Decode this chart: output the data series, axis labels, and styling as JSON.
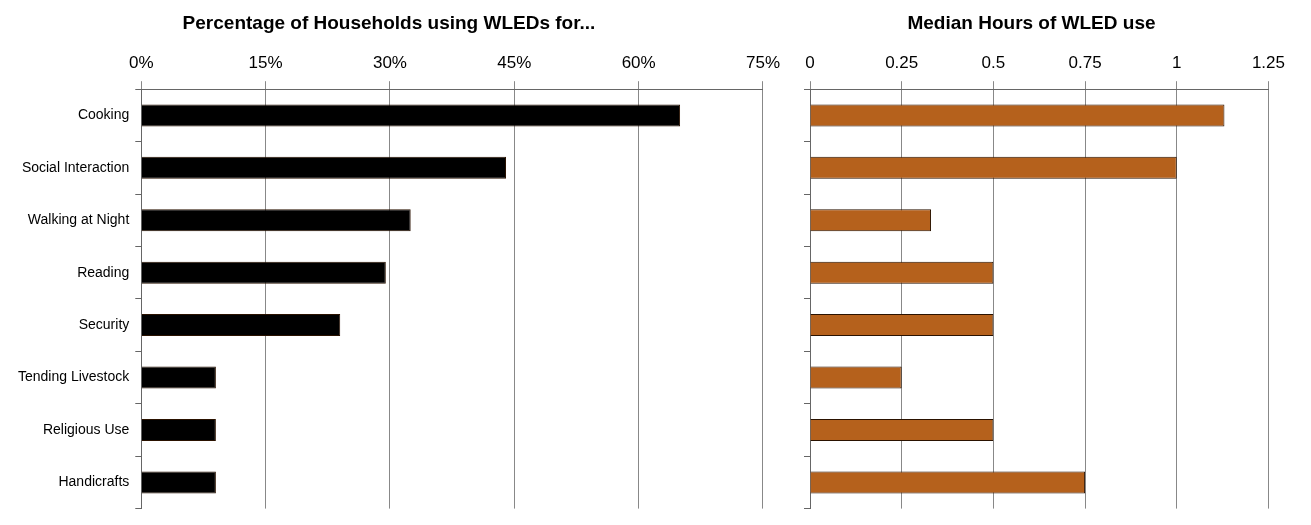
{
  "chart_data": [
    {
      "type": "bar",
      "orientation": "horizontal",
      "title": "Percentage of Households using WLEDs for...",
      "categories": [
        "Cooking",
        "Social Interaction",
        "Walking at Night",
        "Reading",
        "Security",
        "Tending Livestock",
        "Religious Use",
        "Handicrafts"
      ],
      "values": [
        65,
        44,
        32.5,
        29.5,
        24,
        9,
        9,
        9
      ],
      "color": "#000000",
      "xlim": [
        0,
        75
      ],
      "xticks": [
        {
          "value": 0,
          "label": "0%"
        },
        {
          "value": 15,
          "label": "15%"
        },
        {
          "value": 30,
          "label": "30%"
        },
        {
          "value": 45,
          "label": "45%"
        },
        {
          "value": 60,
          "label": "60%"
        },
        {
          "value": 75,
          "label": "75%"
        }
      ],
      "grid": "x",
      "legend": false
    },
    {
      "type": "bar",
      "orientation": "horizontal",
      "title": "Median Hours of WLED use",
      "categories": [
        null,
        null,
        null,
        null,
        null,
        null,
        null,
        null
      ],
      "values": [
        1.13,
        1,
        0.33,
        0.5,
        0.5,
        0.25,
        0.5,
        0.75
      ],
      "color": "#b5611c",
      "xlim": [
        0,
        1.25
      ],
      "xticks": [
        0,
        0.25,
        0.5,
        0.75,
        1,
        1.25
      ],
      "grid": "x",
      "legend": false
    }
  ]
}
